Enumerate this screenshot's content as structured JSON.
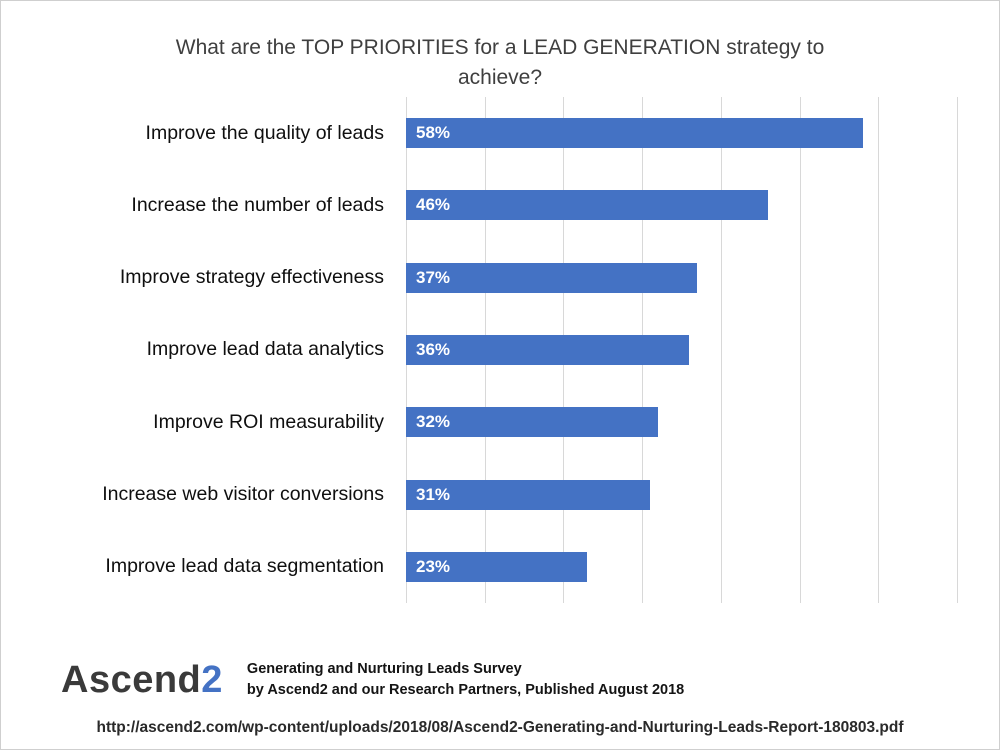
{
  "chart_data": {
    "type": "bar",
    "orientation": "horizontal",
    "title": "What are the TOP PRIORITIES for a LEAD GENERATION strategy to achieve?",
    "categories": [
      "Improve the quality of leads",
      "Increase the number of leads",
      "Improve strategy effectiveness",
      "Improve lead data analytics",
      "Improve ROI measurability",
      "Increase web visitor conversions",
      "Improve lead data segmentation"
    ],
    "values": [
      58,
      46,
      37,
      36,
      32,
      31,
      23
    ],
    "value_labels": [
      "58%",
      "46%",
      "37%",
      "36%",
      "32%",
      "31%",
      "23%"
    ],
    "xlim": [
      0,
      70
    ],
    "tick_step": 10,
    "grid": "vertical",
    "legend": "none",
    "bar_color": "#4472c4",
    "value_label_color": "#ffffff"
  },
  "footer": {
    "logo_black": "Ascend",
    "logo_accent": "2",
    "survey_line1": "Generating and Nurturing Leads Survey",
    "survey_line2": "by Ascend2 and our Research Partners, Published August 2018",
    "url": "http://ascend2.com/wp-content/uploads/2018/08/Ascend2-Generating-and-Nurturing-Leads-Report-180803.pdf"
  },
  "colors": {
    "accent": "#4472c4",
    "grid": "#d8d8d8",
    "title_text": "#3f3f3f"
  }
}
